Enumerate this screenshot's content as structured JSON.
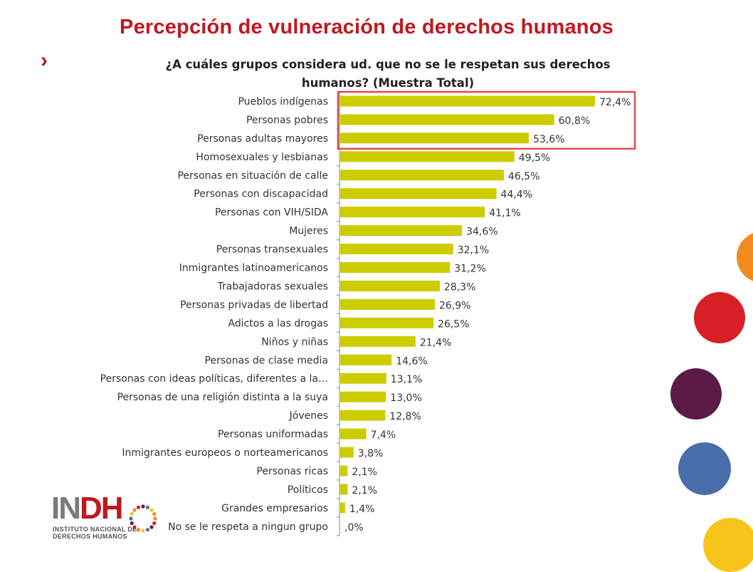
{
  "header": {
    "title": "Percepción de vulneración de derechos humanos",
    "bullet_icon": "chevron-right-icon",
    "accent_color": "#c0181f"
  },
  "chart_data": {
    "type": "bar",
    "orientation": "horizontal",
    "title_lines": [
      "¿A cuáles grupos considera ud. que no se le respetan sus derechos",
      "humanos? (Muestra Total)"
    ],
    "categories": [
      "Pueblos indígenas",
      "Personas pobres",
      "Personas adultas mayores",
      "Homosexuales y lesbianas",
      "Personas en situación de calle",
      "Personas con discapacidad",
      "Personas con VIH/SIDA",
      "Mujeres",
      "Personas transexuales",
      "Inmigrantes latinoamericanos",
      "Trabajadoras sexuales",
      "Personas privadas de libertad",
      "Adictos a las drogas",
      "Niños y niñas",
      "Personas de clase media",
      "Personas con ideas políticas, diferentes a la…",
      "Personas de una religión distinta a la suya",
      "Jóvenes",
      "Personas uniformadas",
      "Inmigrantes europeos o norteamericanos",
      "Personas ricas",
      "Políticos",
      "Grandes empresarios",
      "No se le respeta a ningun grupo"
    ],
    "values": [
      72.4,
      60.8,
      53.6,
      49.5,
      46.5,
      44.4,
      41.1,
      34.6,
      32.1,
      31.2,
      28.3,
      26.9,
      26.5,
      21.4,
      14.6,
      13.1,
      13.0,
      12.8,
      7.4,
      3.8,
      2.1,
      2.1,
      1.4,
      0.0
    ],
    "value_labels": [
      "72,4%",
      "60,8%",
      "53,6%",
      "49,5%",
      "46,5%",
      "44,4%",
      "41,1%",
      "34,6%",
      "32,1%",
      "31,2%",
      "28,3%",
      "26,9%",
      "26,5%",
      "21,4%",
      "14,6%",
      "13,1%",
      "13,0%",
      "12,8%",
      "7,4%",
      "3,8%",
      "2,1%",
      "2,1%",
      "1,4%",
      ",0%"
    ],
    "xlim": [
      0,
      85
    ],
    "bar_color": "#cccc00",
    "highlight_color": "#e8474a",
    "highlight_categories": [
      "Pueblos indígenas",
      "Personas pobres",
      "Personas adultas mayores"
    ],
    "grid": false
  },
  "logo": {
    "name_gray": "IN",
    "name_red": "DH",
    "line1": "INSTITUTO NACIONAL DE",
    "line2": "DERECHOS HUMANOS"
  },
  "decor_colors": [
    "#f28a1e",
    "#d71f26",
    "#5c1a47",
    "#4a6eab",
    "#f7c51a"
  ]
}
